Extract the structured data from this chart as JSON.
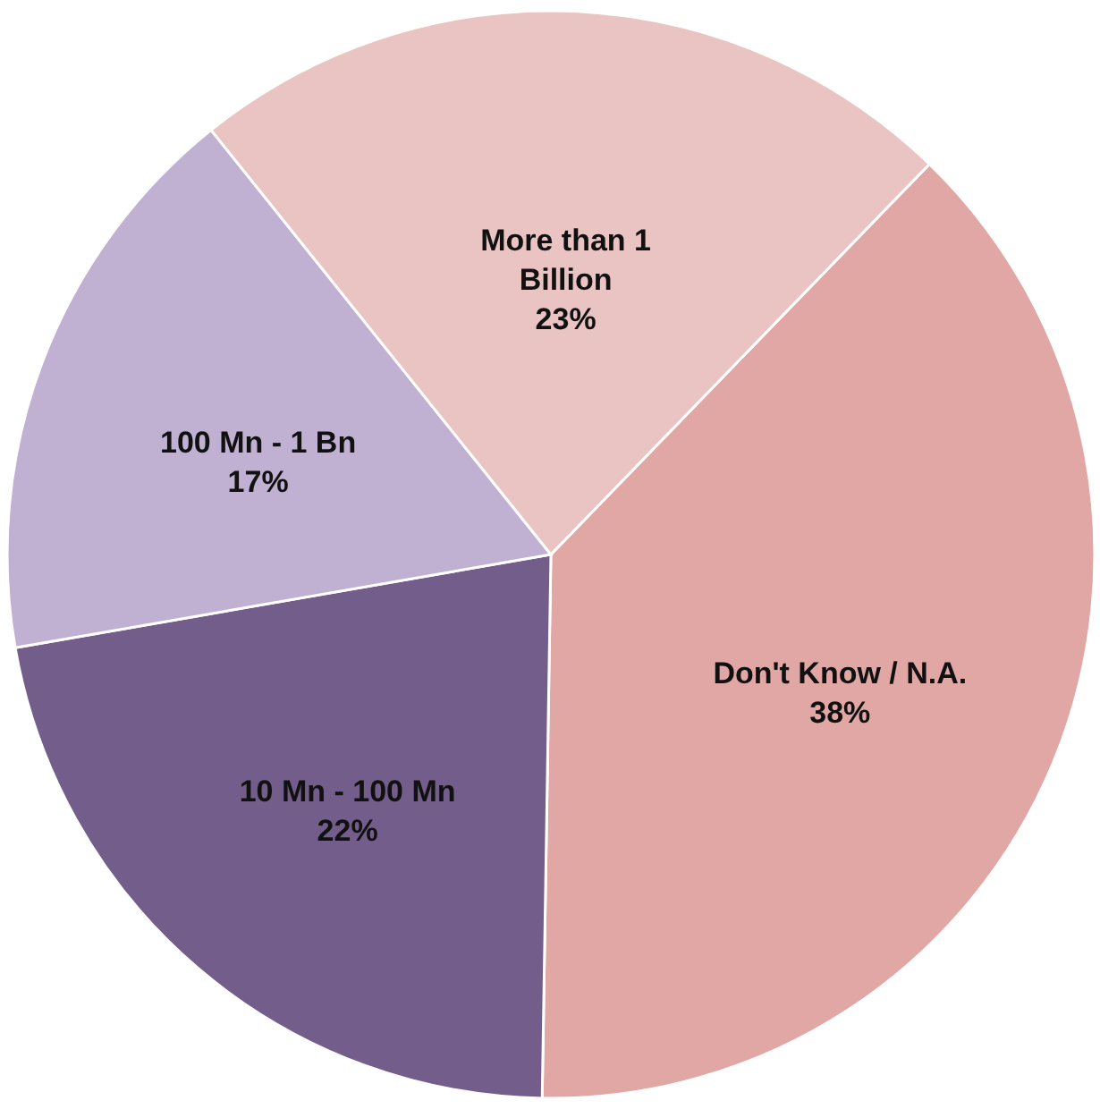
{
  "chart_data": {
    "type": "pie",
    "categories": [
      "Don't Know / N.A.",
      "10 Mn - 100 Mn",
      "100 Mn - 1 Bn",
      "More than 1 Billion"
    ],
    "values": [
      38,
      22,
      17,
      23
    ],
    "colors": [
      "#e1a7a5",
      "#735d8a",
      "#c0b0d2",
      "#eac4c3"
    ],
    "value_labels": [
      "38%",
      "22%",
      "17%",
      "23%"
    ]
  }
}
